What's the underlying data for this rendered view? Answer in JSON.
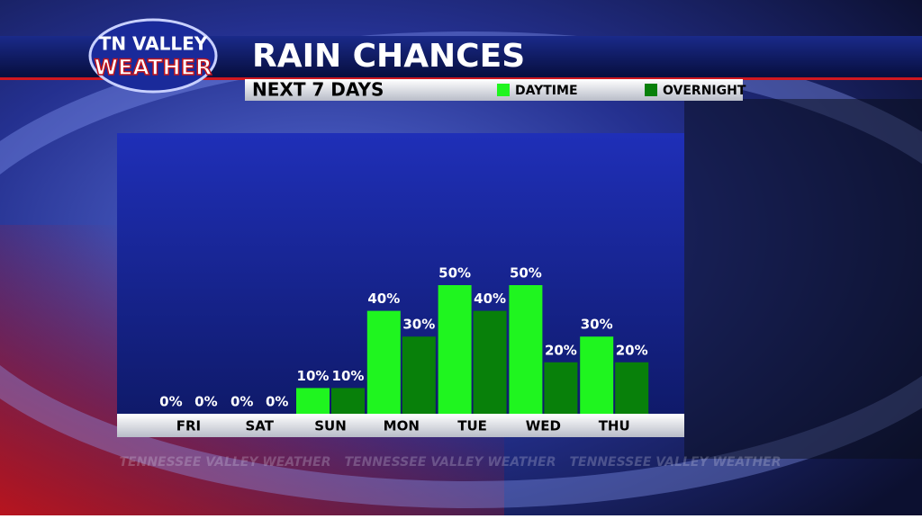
{
  "logo": {
    "line1": "TN VALLEY",
    "line2": "WEATHER"
  },
  "watermark": "TENNESSEE VALLEY WEATHER",
  "chart_data": {
    "type": "bar",
    "title": "RAIN CHANCES",
    "subtitle": "NEXT 7 DAYS",
    "categories": [
      "FRI",
      "SAT",
      "SUN",
      "MON",
      "TUE",
      "WED",
      "THU"
    ],
    "series": [
      {
        "name": "DAYTIME",
        "color": "#1ff51f",
        "values": [
          0,
          0,
          10,
          40,
          50,
          50,
          30
        ],
        "value_labels": [
          "0%",
          "0%",
          "10%",
          "40%",
          "50%",
          "50%",
          "30%"
        ]
      },
      {
        "name": "OVERNIGHT",
        "color": "#08800a",
        "values": [
          0,
          0,
          10,
          30,
          40,
          20,
          20
        ],
        "value_labels": [
          "0%",
          "0%",
          "10%",
          "30%",
          "40%",
          "20%",
          "20%"
        ]
      }
    ],
    "ylim": [
      0,
      100
    ]
  }
}
